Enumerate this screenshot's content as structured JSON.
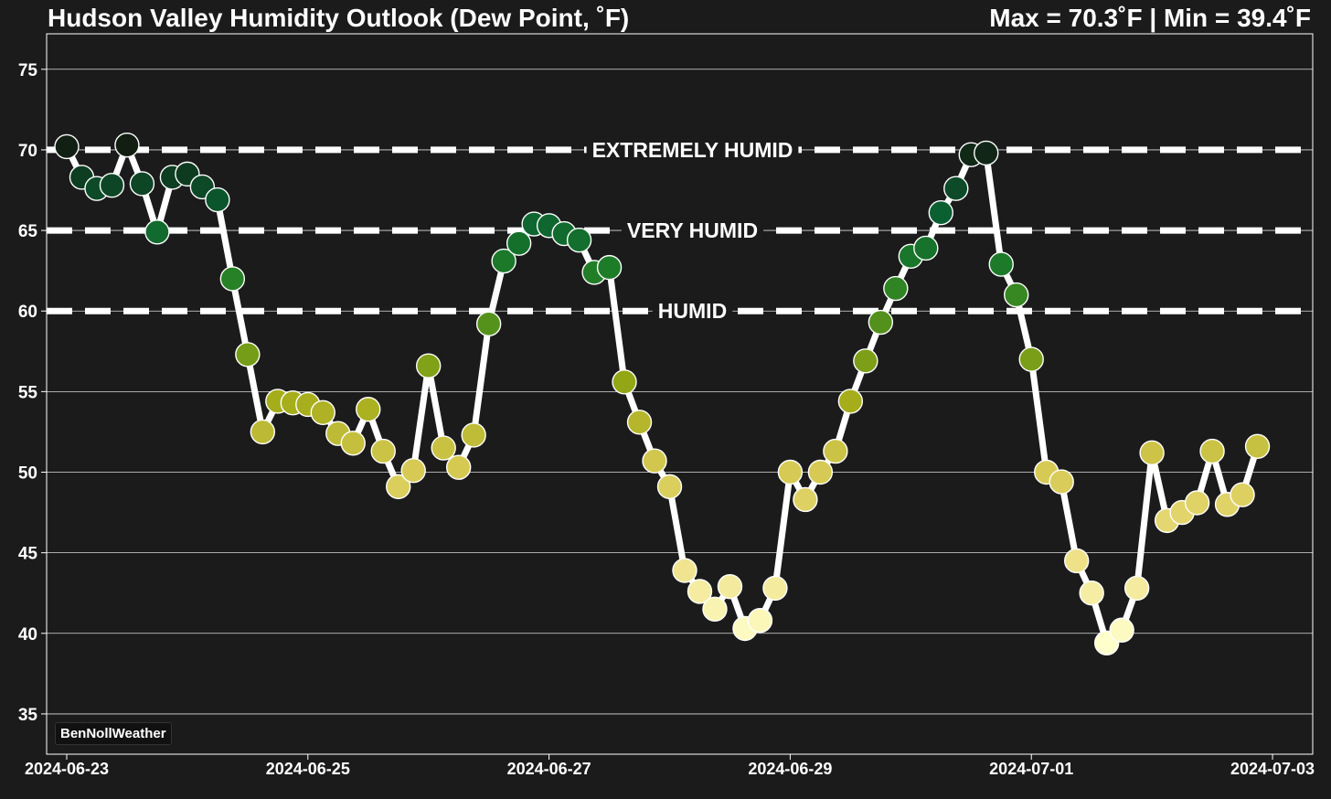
{
  "header": {
    "title": "Hudson Valley Humidity Outlook (Dew Point, ˚F)",
    "stats": "Max = 70.3˚F | Min = 39.4˚F"
  },
  "credit": "BenNollWeather",
  "colors": {
    "background": "#1b1b1b",
    "plot_border": "#ffffff",
    "gridline": "#ffffff",
    "line": "#ffffff",
    "point_edge": "#ffffff"
  },
  "chart_data": {
    "type": "line",
    "x_tick_labels": [
      "2024-06-23",
      "2024-06-25",
      "2024-06-27",
      "2024-06-29",
      "2024-07-01",
      "2024-07-03"
    ],
    "x_range": [
      "2024-06-22T20:00",
      "2024-07-03T08:00"
    ],
    "ylim": [
      32.5,
      77.2
    ],
    "y_ticks": [
      35,
      40,
      45,
      50,
      55,
      60,
      65,
      70,
      75
    ],
    "grid": "horizontal",
    "thresholds": [
      {
        "value": 70,
        "label": "EXTREMELY HUMID"
      },
      {
        "value": 65,
        "label": "VERY HUMID"
      },
      {
        "value": 60,
        "label": "HUMID"
      }
    ],
    "colormap": "YlGn",
    "color_range": [
      39.4,
      70.3
    ],
    "series": [
      {
        "x": [
          "2024-06-23T00:00",
          "2024-06-23T03:00",
          "2024-06-23T06:00",
          "2024-06-23T09:00",
          "2024-06-23T12:00",
          "2024-06-23T15:00",
          "2024-06-23T18:00",
          "2024-06-23T21:00",
          "2024-06-24T00:00",
          "2024-06-24T03:00",
          "2024-06-24T06:00",
          "2024-06-24T09:00",
          "2024-06-24T12:00",
          "2024-06-24T15:00",
          "2024-06-24T18:00",
          "2024-06-24T21:00",
          "2024-06-25T00:00",
          "2024-06-25T03:00",
          "2024-06-25T06:00",
          "2024-06-25T09:00",
          "2024-06-25T12:00",
          "2024-06-25T15:00",
          "2024-06-25T18:00",
          "2024-06-25T21:00",
          "2024-06-26T00:00",
          "2024-06-26T03:00",
          "2024-06-26T06:00",
          "2024-06-26T09:00",
          "2024-06-26T12:00",
          "2024-06-26T15:00",
          "2024-06-26T18:00",
          "2024-06-26T21:00",
          "2024-06-27T00:00",
          "2024-06-27T03:00",
          "2024-06-27T06:00",
          "2024-06-27T09:00",
          "2024-06-27T12:00",
          "2024-06-27T15:00",
          "2024-06-27T18:00",
          "2024-06-27T21:00",
          "2024-06-28T00:00",
          "2024-06-28T03:00",
          "2024-06-28T06:00",
          "2024-06-28T09:00",
          "2024-06-28T12:00",
          "2024-06-28T15:00",
          "2024-06-28T18:00",
          "2024-06-28T21:00",
          "2024-06-29T00:00",
          "2024-06-29T03:00",
          "2024-06-29T06:00",
          "2024-06-29T09:00",
          "2024-06-29T12:00",
          "2024-06-29T15:00",
          "2024-06-29T18:00",
          "2024-06-29T21:00",
          "2024-06-30T00:00",
          "2024-06-30T03:00",
          "2024-06-30T06:00",
          "2024-06-30T09:00",
          "2024-06-30T12:00",
          "2024-06-30T15:00",
          "2024-06-30T18:00",
          "2024-06-30T21:00",
          "2024-07-01T00:00",
          "2024-07-01T03:00",
          "2024-07-01T06:00",
          "2024-07-01T09:00",
          "2024-07-01T12:00",
          "2024-07-01T15:00",
          "2024-07-01T18:00",
          "2024-07-01T21:00",
          "2024-07-02T00:00",
          "2024-07-02T03:00",
          "2024-07-02T06:00",
          "2024-07-02T09:00",
          "2024-07-02T12:00",
          "2024-07-02T15:00",
          "2024-07-02T18:00",
          "2024-07-02T21:00"
        ],
        "values": [
          70.2,
          68.3,
          67.6,
          67.8,
          70.3,
          67.9,
          64.9,
          68.3,
          68.5,
          67.7,
          66.9,
          62.0,
          57.3,
          52.5,
          54.4,
          54.3,
          54.2,
          53.7,
          52.4,
          51.8,
          53.9,
          51.3,
          49.1,
          50.1,
          56.6,
          51.5,
          50.3,
          52.3,
          59.2,
          63.1,
          64.2,
          65.4,
          65.3,
          64.8,
          64.4,
          62.4,
          62.7,
          55.6,
          53.1,
          50.7,
          49.1,
          43.9,
          42.6,
          41.5,
          42.9,
          40.3,
          40.8,
          42.8,
          50.0,
          48.3,
          50.0,
          51.3,
          54.4,
          56.9,
          59.3,
          61.4,
          63.4,
          63.9,
          66.1,
          67.6,
          69.7,
          69.8,
          62.9,
          61.0,
          57.0,
          50.0,
          49.4,
          44.5,
          42.5,
          39.4,
          40.2,
          42.8,
          51.2,
          47.0,
          47.5,
          48.1,
          51.3,
          48.0,
          48.6,
          51.6
        ]
      }
    ]
  }
}
